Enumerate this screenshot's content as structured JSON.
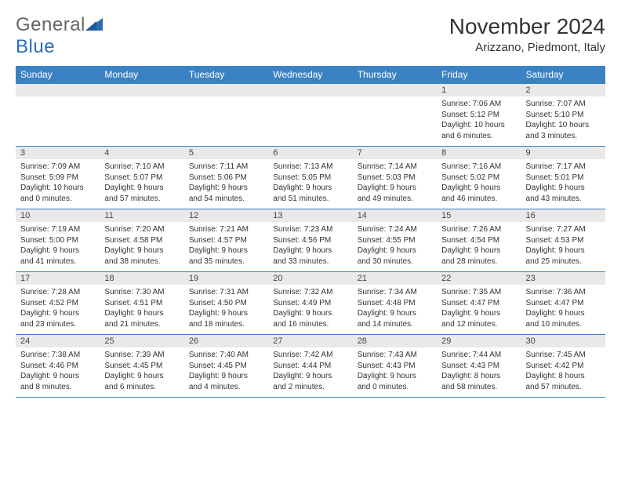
{
  "logo": {
    "word1": "General",
    "word2": "Blue"
  },
  "title": "November 2024",
  "subtitle": "Arizzano, Piedmont, Italy",
  "colors": {
    "header_bg": "#3b82c4",
    "header_text": "#ffffff",
    "daynum_bg": "#e9e9e9",
    "border": "#3b82c4",
    "text": "#333333",
    "logo_gray": "#666666",
    "logo_blue": "#2a6fb5",
    "page_bg": "#ffffff"
  },
  "typography": {
    "title_fontsize": 28,
    "subtitle_fontsize": 15,
    "header_fontsize": 12,
    "daynum_fontsize": 11,
    "cell_fontsize": 10
  },
  "day_headers": [
    "Sunday",
    "Monday",
    "Tuesday",
    "Wednesday",
    "Thursday",
    "Friday",
    "Saturday"
  ],
  "weeks": [
    [
      null,
      null,
      null,
      null,
      null,
      {
        "n": "1",
        "sr": "Sunrise: 7:06 AM",
        "ss": "Sunset: 5:12 PM",
        "dl1": "Daylight: 10 hours",
        "dl2": "and 6 minutes."
      },
      {
        "n": "2",
        "sr": "Sunrise: 7:07 AM",
        "ss": "Sunset: 5:10 PM",
        "dl1": "Daylight: 10 hours",
        "dl2": "and 3 minutes."
      }
    ],
    [
      {
        "n": "3",
        "sr": "Sunrise: 7:09 AM",
        "ss": "Sunset: 5:09 PM",
        "dl1": "Daylight: 10 hours",
        "dl2": "and 0 minutes."
      },
      {
        "n": "4",
        "sr": "Sunrise: 7:10 AM",
        "ss": "Sunset: 5:07 PM",
        "dl1": "Daylight: 9 hours",
        "dl2": "and 57 minutes."
      },
      {
        "n": "5",
        "sr": "Sunrise: 7:11 AM",
        "ss": "Sunset: 5:06 PM",
        "dl1": "Daylight: 9 hours",
        "dl2": "and 54 minutes."
      },
      {
        "n": "6",
        "sr": "Sunrise: 7:13 AM",
        "ss": "Sunset: 5:05 PM",
        "dl1": "Daylight: 9 hours",
        "dl2": "and 51 minutes."
      },
      {
        "n": "7",
        "sr": "Sunrise: 7:14 AM",
        "ss": "Sunset: 5:03 PM",
        "dl1": "Daylight: 9 hours",
        "dl2": "and 49 minutes."
      },
      {
        "n": "8",
        "sr": "Sunrise: 7:16 AM",
        "ss": "Sunset: 5:02 PM",
        "dl1": "Daylight: 9 hours",
        "dl2": "and 46 minutes."
      },
      {
        "n": "9",
        "sr": "Sunrise: 7:17 AM",
        "ss": "Sunset: 5:01 PM",
        "dl1": "Daylight: 9 hours",
        "dl2": "and 43 minutes."
      }
    ],
    [
      {
        "n": "10",
        "sr": "Sunrise: 7:19 AM",
        "ss": "Sunset: 5:00 PM",
        "dl1": "Daylight: 9 hours",
        "dl2": "and 41 minutes."
      },
      {
        "n": "11",
        "sr": "Sunrise: 7:20 AM",
        "ss": "Sunset: 4:58 PM",
        "dl1": "Daylight: 9 hours",
        "dl2": "and 38 minutes."
      },
      {
        "n": "12",
        "sr": "Sunrise: 7:21 AM",
        "ss": "Sunset: 4:57 PM",
        "dl1": "Daylight: 9 hours",
        "dl2": "and 35 minutes."
      },
      {
        "n": "13",
        "sr": "Sunrise: 7:23 AM",
        "ss": "Sunset: 4:56 PM",
        "dl1": "Daylight: 9 hours",
        "dl2": "and 33 minutes."
      },
      {
        "n": "14",
        "sr": "Sunrise: 7:24 AM",
        "ss": "Sunset: 4:55 PM",
        "dl1": "Daylight: 9 hours",
        "dl2": "and 30 minutes."
      },
      {
        "n": "15",
        "sr": "Sunrise: 7:26 AM",
        "ss": "Sunset: 4:54 PM",
        "dl1": "Daylight: 9 hours",
        "dl2": "and 28 minutes."
      },
      {
        "n": "16",
        "sr": "Sunrise: 7:27 AM",
        "ss": "Sunset: 4:53 PM",
        "dl1": "Daylight: 9 hours",
        "dl2": "and 25 minutes."
      }
    ],
    [
      {
        "n": "17",
        "sr": "Sunrise: 7:28 AM",
        "ss": "Sunset: 4:52 PM",
        "dl1": "Daylight: 9 hours",
        "dl2": "and 23 minutes."
      },
      {
        "n": "18",
        "sr": "Sunrise: 7:30 AM",
        "ss": "Sunset: 4:51 PM",
        "dl1": "Daylight: 9 hours",
        "dl2": "and 21 minutes."
      },
      {
        "n": "19",
        "sr": "Sunrise: 7:31 AM",
        "ss": "Sunset: 4:50 PM",
        "dl1": "Daylight: 9 hours",
        "dl2": "and 18 minutes."
      },
      {
        "n": "20",
        "sr": "Sunrise: 7:32 AM",
        "ss": "Sunset: 4:49 PM",
        "dl1": "Daylight: 9 hours",
        "dl2": "and 16 minutes."
      },
      {
        "n": "21",
        "sr": "Sunrise: 7:34 AM",
        "ss": "Sunset: 4:48 PM",
        "dl1": "Daylight: 9 hours",
        "dl2": "and 14 minutes."
      },
      {
        "n": "22",
        "sr": "Sunrise: 7:35 AM",
        "ss": "Sunset: 4:47 PM",
        "dl1": "Daylight: 9 hours",
        "dl2": "and 12 minutes."
      },
      {
        "n": "23",
        "sr": "Sunrise: 7:36 AM",
        "ss": "Sunset: 4:47 PM",
        "dl1": "Daylight: 9 hours",
        "dl2": "and 10 minutes."
      }
    ],
    [
      {
        "n": "24",
        "sr": "Sunrise: 7:38 AM",
        "ss": "Sunset: 4:46 PM",
        "dl1": "Daylight: 9 hours",
        "dl2": "and 8 minutes."
      },
      {
        "n": "25",
        "sr": "Sunrise: 7:39 AM",
        "ss": "Sunset: 4:45 PM",
        "dl1": "Daylight: 9 hours",
        "dl2": "and 6 minutes."
      },
      {
        "n": "26",
        "sr": "Sunrise: 7:40 AM",
        "ss": "Sunset: 4:45 PM",
        "dl1": "Daylight: 9 hours",
        "dl2": "and 4 minutes."
      },
      {
        "n": "27",
        "sr": "Sunrise: 7:42 AM",
        "ss": "Sunset: 4:44 PM",
        "dl1": "Daylight: 9 hours",
        "dl2": "and 2 minutes."
      },
      {
        "n": "28",
        "sr": "Sunrise: 7:43 AM",
        "ss": "Sunset: 4:43 PM",
        "dl1": "Daylight: 9 hours",
        "dl2": "and 0 minutes."
      },
      {
        "n": "29",
        "sr": "Sunrise: 7:44 AM",
        "ss": "Sunset: 4:43 PM",
        "dl1": "Daylight: 8 hours",
        "dl2": "and 58 minutes."
      },
      {
        "n": "30",
        "sr": "Sunrise: 7:45 AM",
        "ss": "Sunset: 4:42 PM",
        "dl1": "Daylight: 8 hours",
        "dl2": "and 57 minutes."
      }
    ]
  ]
}
